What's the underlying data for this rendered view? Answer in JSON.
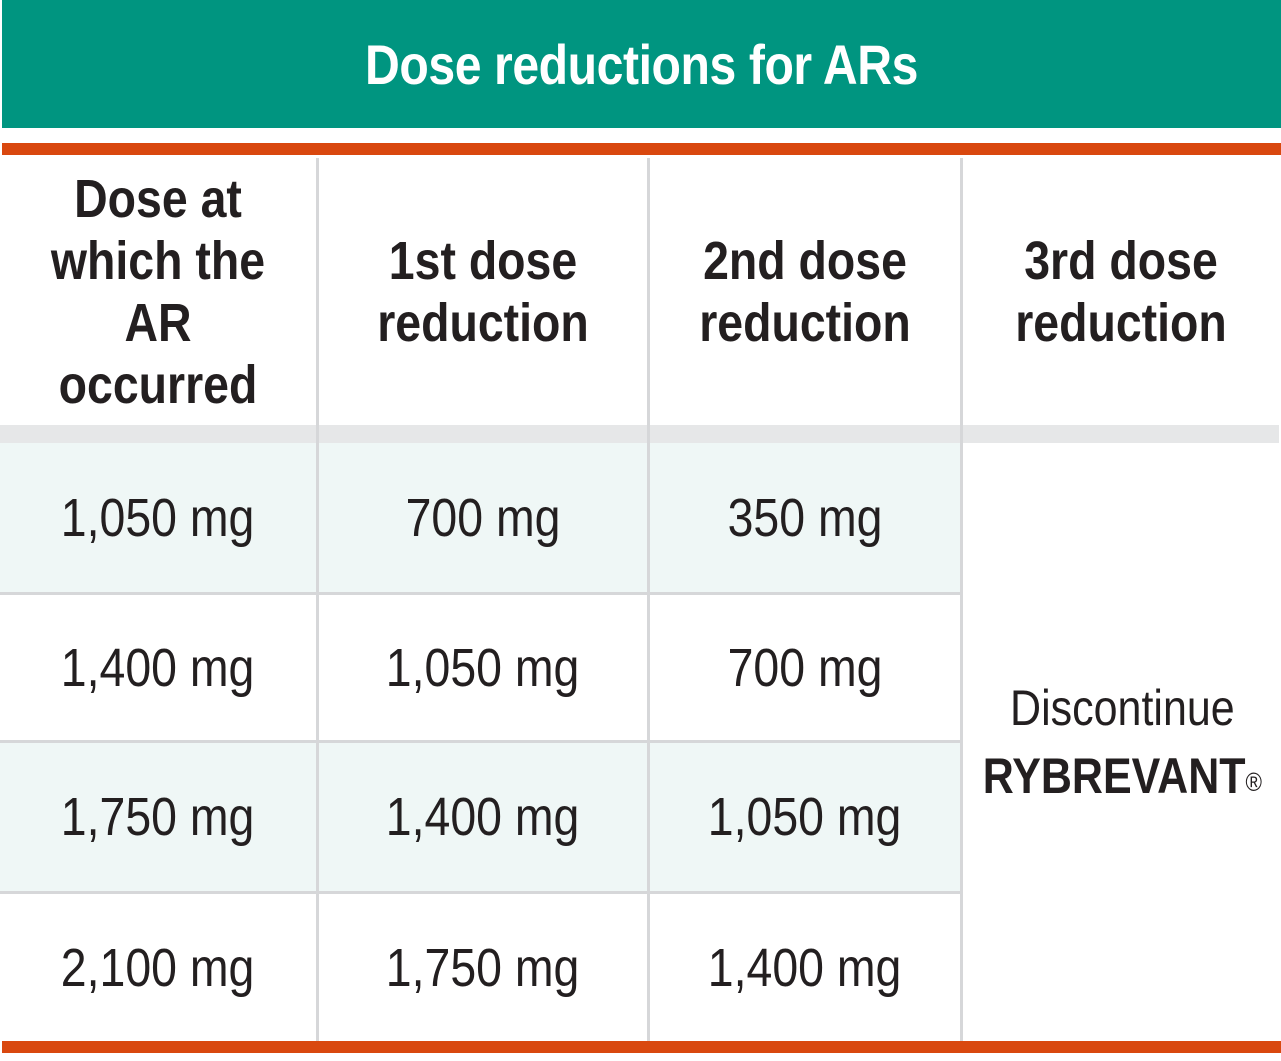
{
  "title": "Dose reductions for ARs",
  "table": {
    "headers": [
      {
        "line1": "Dose at",
        "line2": "which the",
        "line3": "AR occurred"
      },
      {
        "line1": "1st dose",
        "line2": "reduction"
      },
      {
        "line1": "2nd dose",
        "line2": "reduction"
      },
      {
        "line1": "3rd dose",
        "line2": "reduction"
      }
    ],
    "rows": [
      [
        "1,050 mg",
        "700 mg",
        "350 mg"
      ],
      [
        "1,400 mg",
        "1,050 mg",
        "700 mg"
      ],
      [
        "1,750 mg",
        "1,400 mg",
        "1,050 mg"
      ],
      [
        "2,100 mg",
        "1,750 mg",
        "1,400 mg"
      ]
    ],
    "third_reduction": {
      "line1": "Discontinue",
      "brand": "RYBREVANT",
      "mark": "®"
    }
  },
  "colors": {
    "title_bg": "#009580",
    "accent_rule": "#d9480f",
    "row_shade": "#eff7f6",
    "header_separator": "#e6e7e8",
    "grid": "#d6d7d9"
  }
}
